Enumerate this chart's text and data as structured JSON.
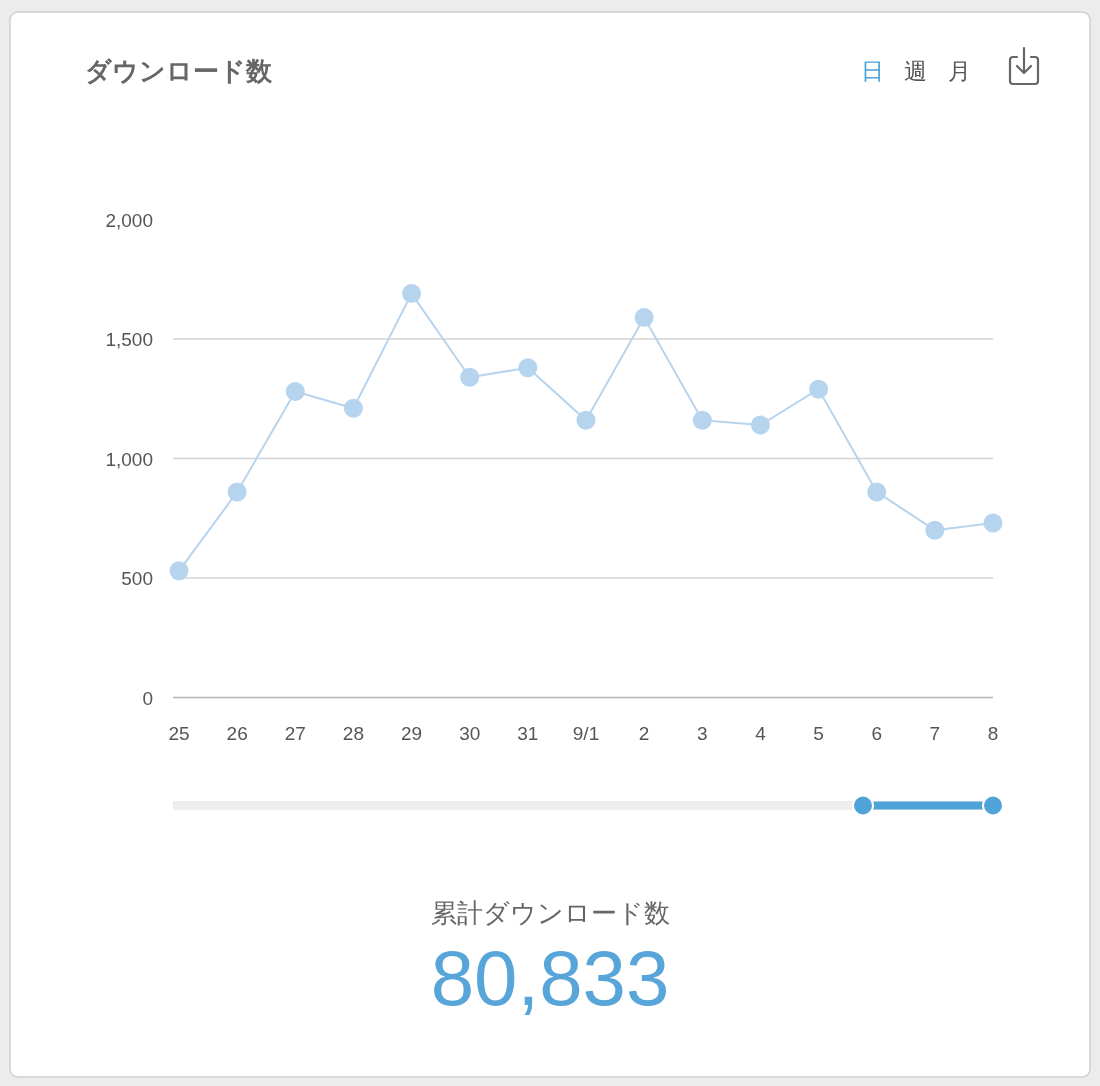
{
  "chart_data": {
    "type": "line",
    "title": "ダウンロード数",
    "categories": [
      "25",
      "26",
      "27",
      "28",
      "29",
      "30",
      "31",
      "9/1",
      "2",
      "3",
      "4",
      "5",
      "6",
      "7",
      "8"
    ],
    "values": [
      530,
      860,
      1280,
      1210,
      1690,
      1340,
      1380,
      1160,
      1590,
      1160,
      1140,
      1290,
      860,
      700,
      730
    ],
    "color": "#b7d4ef",
    "ylim": [
      0,
      2000
    ],
    "yticks": [
      0,
      500,
      {
        "value": 1000,
        "label": "1,000"
      },
      {
        "value": 1500,
        "label": "1,500"
      },
      {
        "value": 2000,
        "label": "2,000"
      }
    ],
    "grid": "y",
    "marker": "circle",
    "line_style": "solid",
    "annotations": [
      "日",
      "週",
      "月",
      "累計ダウンロード数",
      "80,833"
    ]
  }
}
